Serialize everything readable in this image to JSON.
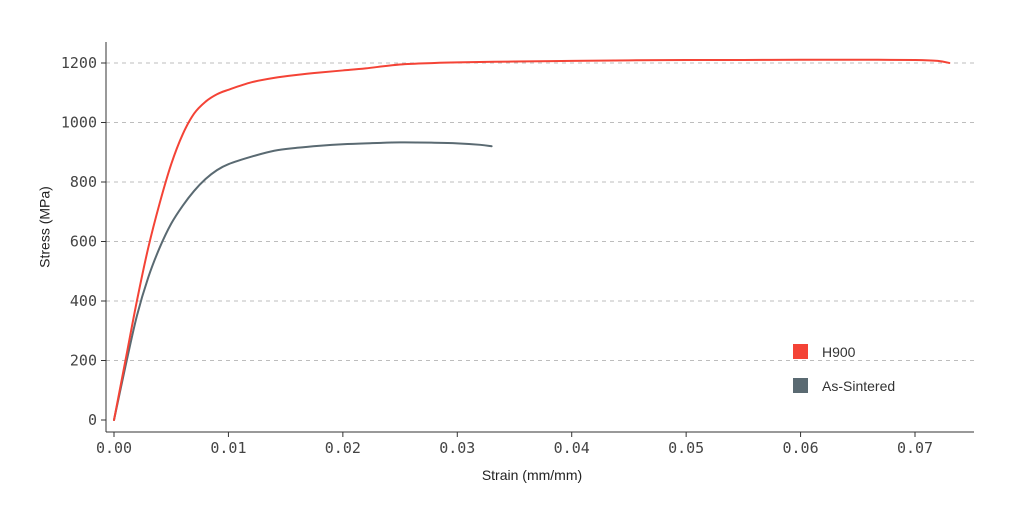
{
  "chart_data": {
    "type": "line",
    "title": "",
    "xlabel": "Strain (mm/mm)",
    "ylabel": "Stress (MPa)",
    "xlim": [
      0,
      0.075
    ],
    "ylim": [
      0,
      1260
    ],
    "x_ticks": [
      "0.00",
      "0.01",
      "0.02",
      "0.03",
      "0.04",
      "0.05",
      "0.06",
      "0.07"
    ],
    "x_tick_values": [
      0,
      0.01,
      0.02,
      0.03,
      0.04,
      0.05,
      0.06,
      0.07
    ],
    "y_ticks": [
      "0",
      "200",
      "400",
      "600",
      "800",
      "1000",
      "1200"
    ],
    "y_tick_values": [
      0,
      200,
      400,
      600,
      800,
      1000,
      1200
    ],
    "grid": "horizontal dashed",
    "legend_position": "bottom-right",
    "series": [
      {
        "name": "H900",
        "color": "#f44336",
        "x": [
          0,
          0.001,
          0.002,
          0.003,
          0.004,
          0.005,
          0.006,
          0.007,
          0.008,
          0.009,
          0.01,
          0.012,
          0.014,
          0.016,
          0.018,
          0.02,
          0.022,
          0.025,
          0.028,
          0.03,
          0.035,
          0.04,
          0.045,
          0.05,
          0.055,
          0.06,
          0.065,
          0.07,
          0.072,
          0.073
        ],
        "y": [
          0,
          200,
          400,
          580,
          730,
          860,
          960,
          1030,
          1070,
          1095,
          1110,
          1135,
          1150,
          1160,
          1168,
          1175,
          1182,
          1195,
          1200,
          1202,
          1205,
          1207,
          1209,
          1210,
          1210,
          1211,
          1211,
          1210,
          1207,
          1200
        ]
      },
      {
        "name": "As-Sintered",
        "color": "#5a6a72",
        "x": [
          0,
          0.001,
          0.002,
          0.003,
          0.004,
          0.005,
          0.006,
          0.007,
          0.008,
          0.009,
          0.01,
          0.012,
          0.014,
          0.016,
          0.018,
          0.02,
          0.022,
          0.025,
          0.028,
          0.03,
          0.032,
          0.033
        ],
        "y": [
          0,
          180,
          350,
          480,
          580,
          660,
          720,
          770,
          810,
          840,
          860,
          885,
          905,
          915,
          922,
          927,
          930,
          933,
          932,
          930,
          925,
          920
        ]
      }
    ]
  }
}
